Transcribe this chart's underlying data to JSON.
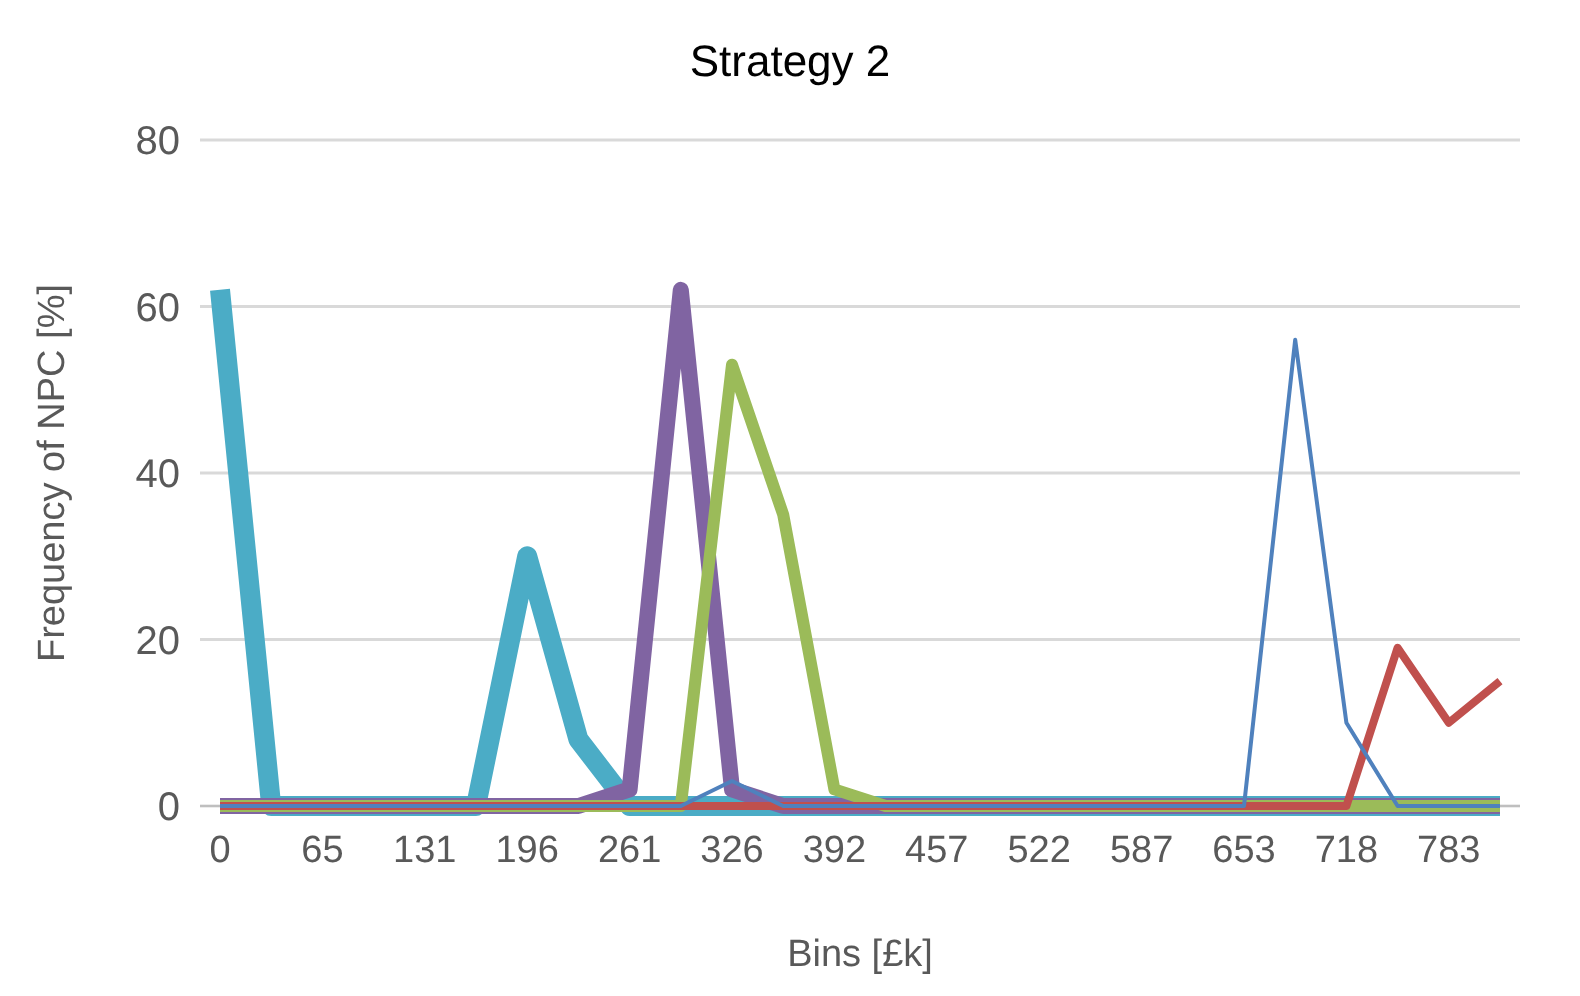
{
  "chart_data": {
    "type": "line",
    "title": "Strategy 2",
    "xlabel": "Bins [£k]",
    "ylabel": "Frequency of NPC [%]",
    "categories": [
      "0",
      null,
      "65",
      null,
      "131",
      null,
      "196",
      null,
      "261",
      null,
      "326",
      null,
      "392",
      null,
      "457",
      null,
      "522",
      null,
      "587",
      null,
      "653",
      null,
      "718",
      null,
      "783",
      null
    ],
    "series": [
      {
        "color": "#4f81bd",
        "values": [
          0,
          0,
          0,
          0,
          0,
          0,
          0,
          0,
          0,
          0,
          3,
          0,
          0,
          0,
          0,
          0,
          0,
          0,
          0,
          0,
          0,
          56,
          10,
          0,
          0,
          0
        ]
      },
      {
        "color": "#c0504d",
        "values": [
          0,
          0,
          0,
          0,
          0,
          0,
          0,
          0,
          0,
          0,
          0,
          0,
          0,
          0,
          0,
          0,
          0,
          0,
          0,
          0,
          0,
          0,
          0,
          19,
          10,
          15
        ]
      },
      {
        "color": "#9bbb59",
        "values": [
          0,
          0,
          0,
          0,
          0,
          0,
          0,
          0,
          0,
          0,
          53,
          35,
          2,
          0,
          0,
          0,
          0,
          0,
          0,
          0,
          0,
          0,
          0,
          0,
          0,
          0
        ]
      },
      {
        "color": "#8064a2",
        "values": [
          0,
          0,
          0,
          0,
          0,
          0,
          0,
          0,
          2,
          62,
          2,
          0,
          0,
          0,
          0,
          0,
          0,
          0,
          0,
          0,
          0,
          0,
          0,
          0,
          0,
          0
        ]
      },
      {
        "color": "#4bacc6",
        "values": [
          62,
          0,
          0,
          0,
          0,
          0,
          30,
          8,
          0,
          0,
          0,
          0,
          0,
          0,
          0,
          0,
          0,
          0,
          0,
          0,
          0,
          0,
          0,
          0,
          0,
          0
        ]
      }
    ],
    "ylim": [
      0,
      80
    ],
    "yticks": [
      0,
      20,
      40,
      60,
      80
    ],
    "grid": "y",
    "marker": "none",
    "line_style": "solid"
  }
}
